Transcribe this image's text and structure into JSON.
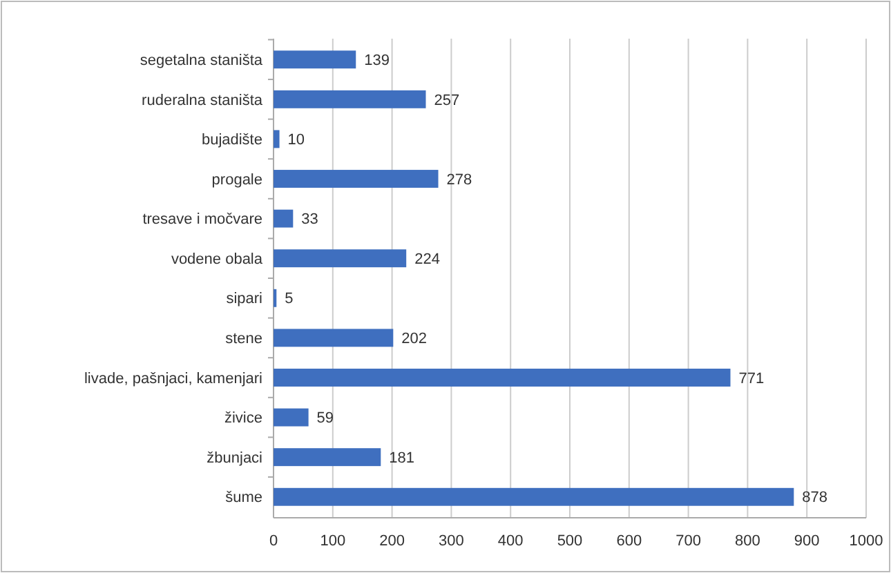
{
  "chart_data": {
    "type": "bar",
    "orientation": "horizontal",
    "categories": [
      "segetalna staništa",
      "ruderalna staništa",
      "bujadište",
      "progale",
      "tresave i močvare",
      "vodene obala",
      "sipari",
      "stene",
      "livade, pašnjaci, kamenjari",
      "živice",
      "žbunjaci",
      "šume"
    ],
    "values": [
      139,
      257,
      10,
      278,
      33,
      224,
      5,
      202,
      771,
      59,
      181,
      878
    ],
    "color": "#3f6fbf",
    "xlim": [
      0,
      1000
    ],
    "xticks": [
      0,
      100,
      200,
      300,
      400,
      500,
      600,
      700,
      800,
      900,
      1000
    ],
    "grid": "x",
    "data_labels": true
  }
}
